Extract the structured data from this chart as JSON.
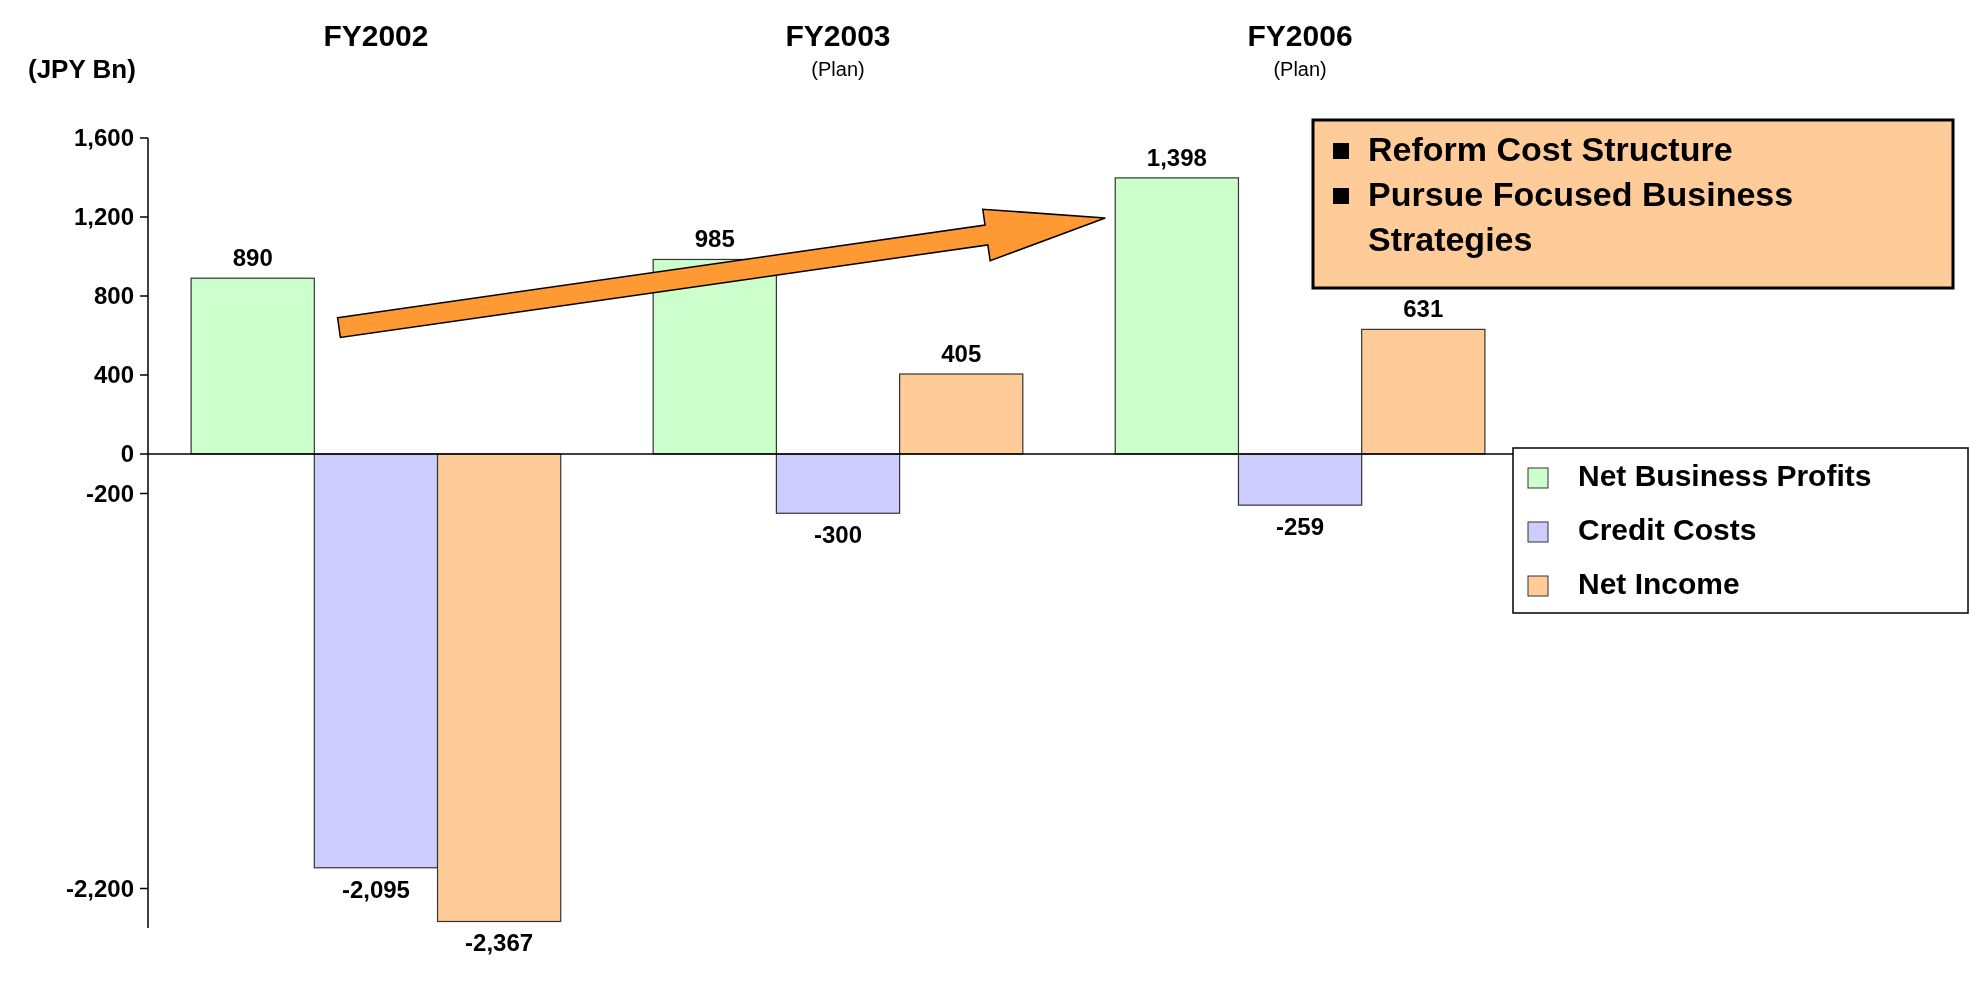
{
  "chart_data": {
    "type": "bar",
    "ylabel": "(JPY Bn)",
    "categories": [
      "FY2002",
      "FY2003\n(Plan)",
      "FY2006\n(Plan)"
    ],
    "series": [
      {
        "name": "Net Business Profits",
        "color": "#ccffcc",
        "values": [
          890,
          985,
          1398
        ],
        "value_labels": [
          "890",
          "985",
          "1,398"
        ]
      },
      {
        "name": "Credit Costs",
        "color": "#ccccff",
        "values": [
          -2095,
          -300,
          -259
        ],
        "value_labels": [
          "-2,095",
          "-300",
          "-259"
        ]
      },
      {
        "name": "Net Income",
        "color": "#ffcc99",
        "values": [
          -2367,
          405,
          631
        ],
        "value_labels": [
          "-2,367",
          "405",
          "631"
        ]
      }
    ],
    "ylim": [
      -2400,
      1600
    ],
    "yticks": [
      {
        "value": 1600,
        "label": "1,600"
      },
      {
        "value": 1200,
        "label": "1,200"
      },
      800,
      400,
      0,
      -200,
      {
        "value": -2200,
        "label": "-2,200"
      }
    ],
    "legend": "right",
    "annotations": [
      "Reform Cost Structure",
      "Pursue Focused Business Strategies"
    ]
  }
}
